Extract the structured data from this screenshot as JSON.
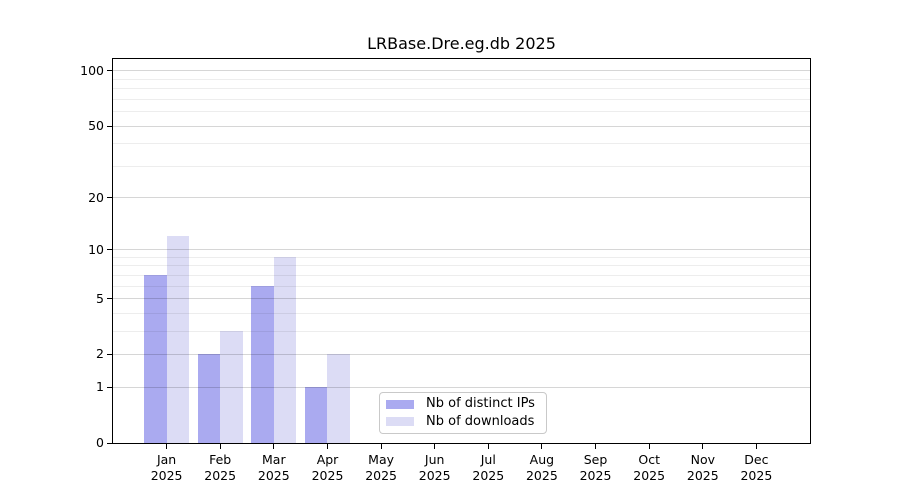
{
  "chart_data": {
    "type": "bar",
    "title": "LRBase.Dre.eg.db 2025",
    "categories": [
      "Jan",
      "Feb",
      "Mar",
      "Apr",
      "May",
      "Jun",
      "Jul",
      "Aug",
      "Sep",
      "Oct",
      "Nov",
      "Dec"
    ],
    "year": "2025",
    "series": [
      {
        "name": "Nb of distinct IPs",
        "color": "#aaaaf0",
        "values": [
          7,
          2,
          6,
          1,
          0,
          0,
          0,
          0,
          0,
          0,
          0,
          0
        ]
      },
      {
        "name": "Nb of downloads",
        "color": "#dcdcf5",
        "values": [
          12,
          3,
          9,
          2,
          0,
          0,
          0,
          0,
          0,
          0,
          0,
          0
        ]
      }
    ],
    "xlabel": "",
    "ylabel": "",
    "yscale": "log1p",
    "ylim": [
      0,
      116
    ],
    "yticks": [
      0,
      1,
      2,
      5,
      10,
      20,
      50,
      100
    ],
    "minor_gridlines": [
      3,
      4,
      6,
      7,
      8,
      9,
      30,
      40,
      60,
      70,
      80,
      90
    ],
    "grid": true,
    "legend_position": "lower center-left inside plot",
    "colors": {
      "axis": "#000000",
      "grid_major": "#d6d6d6",
      "grid_minor": "#ededed",
      "legend_border": "#c9c9c9",
      "background": "#ffffff"
    }
  }
}
